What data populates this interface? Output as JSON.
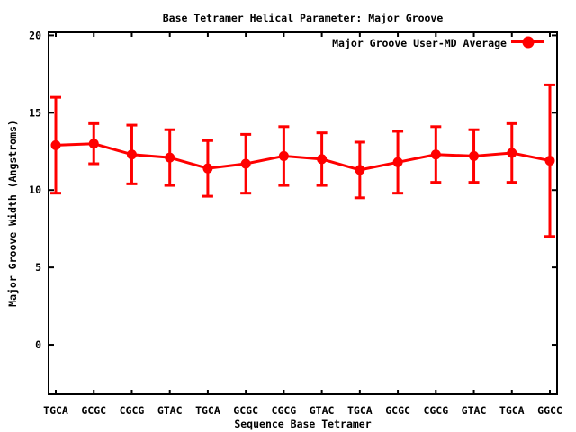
{
  "window": {
    "background": "#ffffff",
    "text_color": "#000000"
  },
  "chart_data": {
    "type": "line",
    "title": "Base Tetramer Helical Parameter: Major Groove",
    "xlabel": "Sequence Base Tetramer",
    "ylabel": "Major Groove Width (Angstroms)",
    "grid": false,
    "legend_position": "top-right-inside",
    "axis_color": "#000000",
    "text_color": "#000000",
    "yticks": [
      0,
      5,
      10,
      15,
      20
    ],
    "ylim": [
      -3.2,
      20.2
    ],
    "categories": [
      "TGCA",
      "GCGC",
      "CGCG",
      "GTAC",
      "TGCA",
      "GCGC",
      "CGCG",
      "GTAC",
      "TGCA",
      "GCGC",
      "CGCG",
      "GTAC",
      "TGCA",
      "GGCC"
    ],
    "series": [
      {
        "name": "Major Groove User-MD Average",
        "color": "#ff0000",
        "marker": "filled-circle",
        "values": [
          12.9,
          13.0,
          12.3,
          12.1,
          11.4,
          11.7,
          12.2,
          12.0,
          11.3,
          11.8,
          12.3,
          12.2,
          12.4,
          11.9
        ],
        "err_low": [
          9.8,
          11.7,
          10.4,
          10.3,
          9.6,
          9.8,
          10.3,
          10.3,
          9.5,
          9.8,
          10.5,
          10.5,
          10.5,
          7.0
        ],
        "err_high": [
          16.0,
          14.3,
          14.2,
          13.9,
          13.2,
          13.6,
          14.1,
          13.7,
          13.1,
          13.8,
          14.1,
          13.9,
          14.3,
          16.8
        ]
      }
    ]
  }
}
